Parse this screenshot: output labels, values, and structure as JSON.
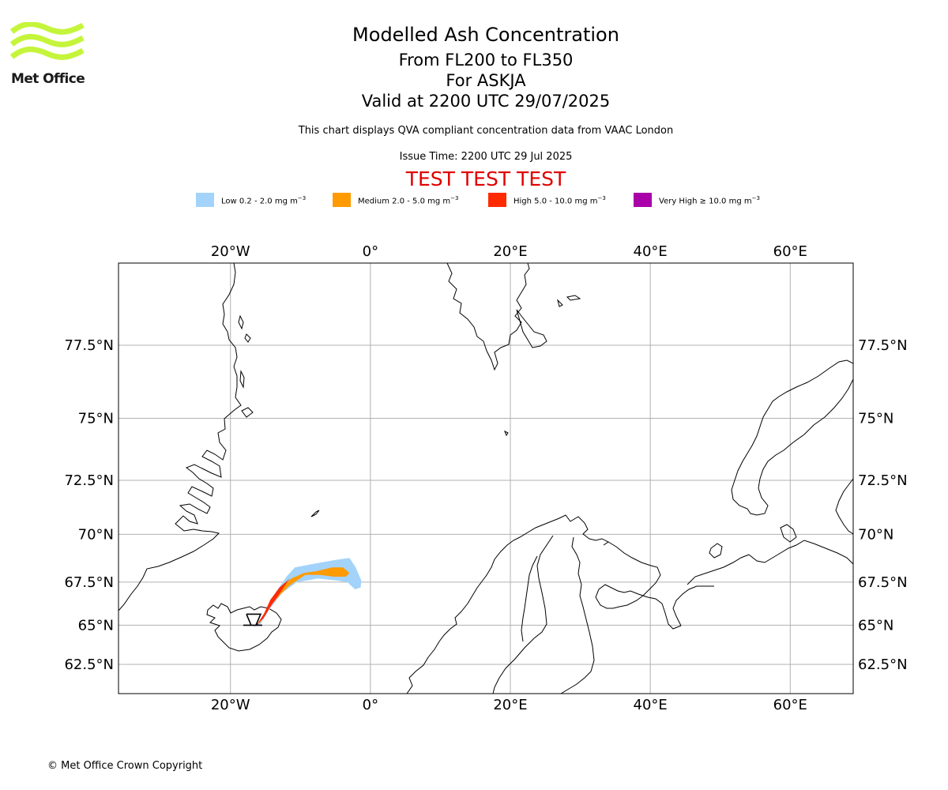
{
  "logo": {
    "text": "Met Office",
    "color": "#c5f53b"
  },
  "title": {
    "main": "Modelled Ash Concentration",
    "levels": "From FL200 to FL350",
    "volcano": "For ASKJA",
    "valid": "Valid at 2200 UTC 29/07/2025",
    "note": "This chart displays QVA compliant concentration data from VAAC London",
    "issue": "Issue Time: 2200 UTC 29 Jul 2025",
    "test": "TEST TEST TEST"
  },
  "legend": [
    {
      "name": "Low",
      "text": "Low 0.2 - 2.0 mg m",
      "color": "#a3d3fa"
    },
    {
      "name": "Medium",
      "text": "Medium 2.0 - 5.0 mg m",
      "color": "#ff9a00"
    },
    {
      "name": "High",
      "text": "High 5.0 - 10.0 mg m",
      "color": "#ff2a00"
    },
    {
      "name": "Very High",
      "text": "Very High  ≥  10.0 mg m",
      "color": "#aa00aa"
    }
  ],
  "legend_unit_exponent": "−3",
  "map": {
    "lon_range": [
      -36,
      69
    ],
    "lat_range": [
      61,
      80
    ],
    "lon_ticks": [
      {
        "value": -20,
        "label": "20°W"
      },
      {
        "value": 0,
        "label": "0°"
      },
      {
        "value": 20,
        "label": "20°E"
      },
      {
        "value": 40,
        "label": "40°E"
      },
      {
        "value": 60,
        "label": "60°E"
      }
    ],
    "lat_ticks": [
      {
        "value": 62.5,
        "label": "62.5°N"
      },
      {
        "value": 65,
        "label": "65°N"
      },
      {
        "value": 67.5,
        "label": "67.5°N"
      },
      {
        "value": 70,
        "label": "70°N"
      },
      {
        "value": 72.5,
        "label": "72.5°N"
      },
      {
        "value": 75,
        "label": "75°N"
      },
      {
        "value": 77.5,
        "label": "77.5°N"
      }
    ],
    "volcano_location": {
      "lon": -16.7,
      "lat": 65.0
    },
    "ash_levels": [
      {
        "level": "Low",
        "lonlat": [
          [
            -16.8,
            64.9
          ],
          [
            -15.6,
            65.3
          ],
          [
            -14.6,
            66.1
          ],
          [
            -13.4,
            67.0
          ],
          [
            -12.0,
            67.8
          ],
          [
            -10.8,
            68.3
          ],
          [
            -8.0,
            68.5
          ],
          [
            -5.0,
            68.7
          ],
          [
            -3.0,
            68.8
          ],
          [
            -2.1,
            68.3
          ],
          [
            -1.3,
            67.6
          ],
          [
            -1.4,
            67.2
          ],
          [
            -2.2,
            67.1
          ],
          [
            -3.3,
            67.5
          ],
          [
            -5.0,
            67.6
          ],
          [
            -7.5,
            67.7
          ],
          [
            -10.5,
            67.5
          ],
          [
            -12.6,
            66.9
          ],
          [
            -14.5,
            65.9
          ],
          [
            -15.8,
            65.0
          ]
        ]
      },
      {
        "level": "Medium",
        "lonlat": [
          [
            -16.3,
            65.0
          ],
          [
            -15.3,
            65.6
          ],
          [
            -14.0,
            66.5
          ],
          [
            -12.4,
            67.3
          ],
          [
            -11.3,
            67.7
          ],
          [
            -9.5,
            68.0
          ],
          [
            -7.7,
            68.1
          ],
          [
            -5.5,
            68.3
          ],
          [
            -3.9,
            68.3
          ],
          [
            -3.0,
            68.0
          ],
          [
            -3.5,
            67.8
          ],
          [
            -5.2,
            67.8
          ],
          [
            -7.3,
            67.9
          ],
          [
            -9.3,
            67.9
          ],
          [
            -11.6,
            67.3
          ],
          [
            -12.9,
            66.8
          ],
          [
            -14.6,
            66.0
          ],
          [
            -15.7,
            65.2
          ]
        ]
      },
      {
        "level": "High",
        "lonlat": [
          [
            -16.2,
            65.05
          ],
          [
            -15.2,
            65.7
          ],
          [
            -14.3,
            66.5
          ],
          [
            -13.0,
            67.2
          ],
          [
            -11.5,
            67.7
          ],
          [
            -11.9,
            67.5
          ],
          [
            -12.9,
            66.9
          ],
          [
            -14.3,
            66.1
          ],
          [
            -15.3,
            65.4
          ]
        ]
      },
      {
        "level": "Very High",
        "lonlat": [
          [
            -16.3,
            65.0
          ],
          [
            -16.0,
            65.05
          ],
          [
            -16.2,
            65.15
          ],
          [
            -16.4,
            65.08
          ]
        ]
      }
    ]
  },
  "copyright": "© Met Office Crown Copyright"
}
